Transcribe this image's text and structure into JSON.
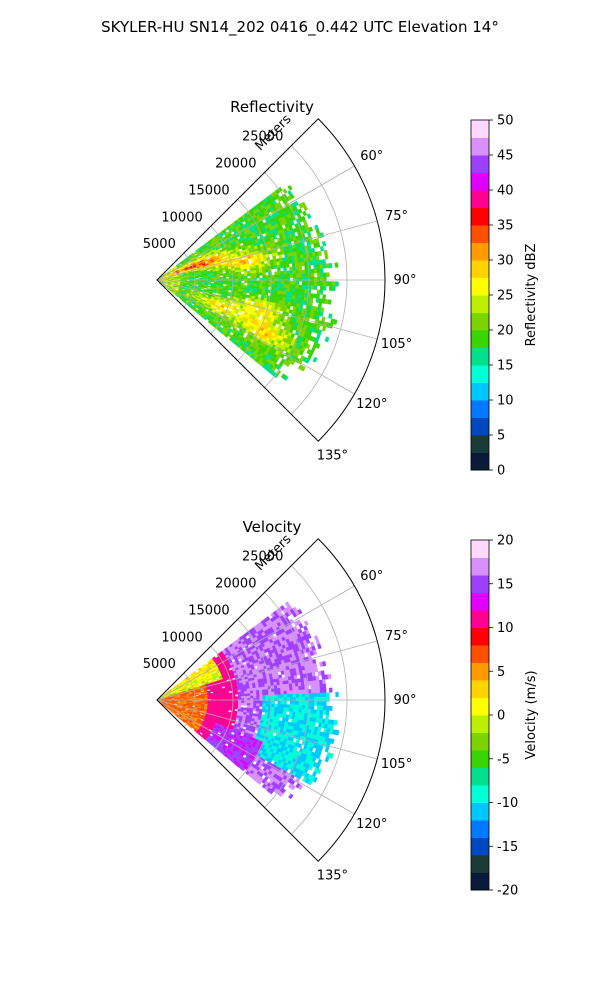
{
  "figure": {
    "title": "SKYLER-HU  SN14_202  0416_0.442 UTC Elevation 14°"
  },
  "chart_data": [
    {
      "type": "heatmap",
      "projection": "polar-sector",
      "title": "Reflectivity",
      "range_label": "Meters",
      "range_ticks": [
        5000,
        10000,
        15000,
        20000,
        25000
      ],
      "range_max": 30000,
      "azimuth_range_deg": [
        45,
        135
      ],
      "azimuth_ticks_deg": [
        60,
        75,
        90,
        105,
        120,
        135
      ],
      "azimuth_tick_labels": [
        "60°",
        "75°",
        "90°",
        "105°",
        "120°",
        "135°"
      ],
      "colorbar": {
        "label": "Reflectivity dBZ",
        "min": 0,
        "max": 50,
        "ticks": [
          0,
          5,
          10,
          15,
          20,
          25,
          30,
          35,
          40,
          45,
          50
        ],
        "colors": [
          "#0a1a3a",
          "#1a3a38",
          "#0048c0",
          "#0078ff",
          "#00c8ff",
          "#00ffd8",
          "#00e08a",
          "#3ad400",
          "#7ad400",
          "#bcf000",
          "#ffff00",
          "#ffd400",
          "#ff9a00",
          "#ff5000",
          "#ff0000",
          "#ff0090",
          "#e000ff",
          "#a040ff",
          "#d890ff",
          "#ffd8ff"
        ]
      },
      "max_extent_m": 24000,
      "features": [
        {
          "az_deg": 68,
          "range_m": 4500,
          "value_dbz": 38
        },
        {
          "az_deg": 78,
          "range_m": 12000,
          "value_dbz": 33
        },
        {
          "az_deg": 105,
          "range_m": 14000,
          "value_dbz": 30
        },
        {
          "az_deg": 112,
          "range_m": 9000,
          "value_dbz": 33
        },
        {
          "az_deg": 115,
          "range_m": 15500,
          "value_dbz": 28
        }
      ]
    },
    {
      "type": "heatmap",
      "projection": "polar-sector",
      "title": "Velocity",
      "range_label": "Meters",
      "range_ticks": [
        5000,
        10000,
        15000,
        20000,
        25000
      ],
      "range_max": 30000,
      "azimuth_range_deg": [
        45,
        135
      ],
      "azimuth_ticks_deg": [
        60,
        75,
        90,
        105,
        120,
        135
      ],
      "azimuth_tick_labels": [
        "60°",
        "75°",
        "90°",
        "105°",
        "120°",
        "135°"
      ],
      "colorbar": {
        "label": "Velocity (m/s)",
        "min": -20,
        "max": 20,
        "ticks": [
          -20,
          -15,
          -10,
          -5,
          0,
          5,
          10,
          15,
          20
        ],
        "colors": [
          "#0a1a3a",
          "#1a3a38",
          "#0048c0",
          "#0078ff",
          "#00c8ff",
          "#00ffd8",
          "#00e08a",
          "#3ad400",
          "#7ad400",
          "#bcf000",
          "#ffff00",
          "#ffd400",
          "#ff9a00",
          "#ff5000",
          "#ff0000",
          "#ff0090",
          "#e000ff",
          "#a040ff",
          "#d890ff",
          "#ffd8ff"
        ]
      },
      "max_extent_m": 24000,
      "features": [
        {
          "az_deg": 65,
          "range_m": 6000,
          "value_ms": -3
        },
        {
          "az_deg": 85,
          "range_m": 9000,
          "value_ms": 9
        },
        {
          "az_deg": 100,
          "range_m": 18000,
          "value_ms": -12
        },
        {
          "az_deg": 120,
          "range_m": 8000,
          "value_ms": 3
        }
      ]
    }
  ]
}
